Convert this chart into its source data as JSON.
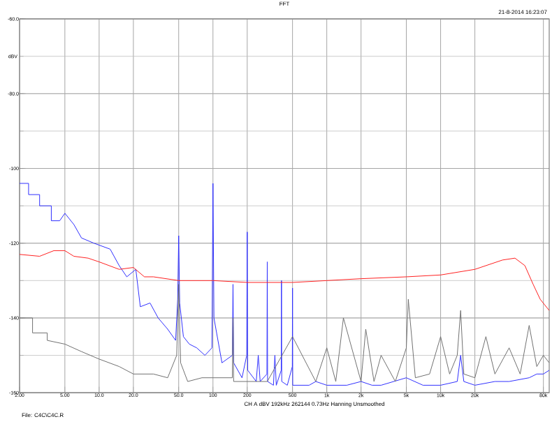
{
  "chart_data": {
    "type": "line",
    "title": "FFT",
    "ylabel": "dBV",
    "annotations": [
      "21-8-2014 16:23:07",
      "CH A  dBV  192kHz  262144  0.73Hz  Hanning  Unsmoothed",
      "File: C4C\\C4C.R"
    ],
    "log": "x",
    "grid": true,
    "marker": "none",
    "line_style": "solid",
    "xlim": [
      2,
      90000
    ],
    "ylim": [
      -160,
      -60
    ],
    "xticks": [
      {
        "value": 2,
        "label": "2.00"
      },
      {
        "value": 5,
        "label": "5.00"
      },
      {
        "value": 10,
        "label": "10.0"
      },
      {
        "value": 20,
        "label": "20.0"
      },
      {
        "value": 50,
        "label": "50.0"
      },
      100,
      200,
      500,
      {
        "value": 1000,
        "label": "1k"
      },
      {
        "value": 2000,
        "label": "2k"
      },
      {
        "value": 5000,
        "label": "5k"
      },
      {
        "value": 10000,
        "label": "10k"
      },
      {
        "value": 20000,
        "label": "20k"
      },
      {
        "value": 80000,
        "label": "80k"
      }
    ],
    "yticks": [
      {
        "value": -60,
        "label": "-60.0"
      },
      {
        "value": -80,
        "label": "-80.0"
      },
      -100,
      -120,
      -140,
      -160
    ],
    "series": [
      {
        "color": "#3030ff",
        "x": [
          2,
          2.4,
          2.4,
          3,
          3,
          3.8,
          3.8,
          4.5,
          5,
          6,
          7,
          9,
          12.5,
          15,
          17.5,
          21,
          23,
          28,
          33,
          40,
          47,
          49,
          50,
          51,
          55,
          62,
          72,
          85,
          98,
          100,
          102,
          120,
          148,
          150,
          152,
          180,
          198,
          200,
          202,
          240,
          250,
          260,
          298,
          300,
          302,
          340,
          350,
          360,
          398,
          400,
          402,
          450,
          498,
          500,
          502,
          600,
          700,
          800,
          1000,
          1500,
          2000,
          2500,
          3000,
          5000,
          7000,
          10000,
          14000,
          15000,
          16000,
          20000,
          30000,
          40000,
          60000,
          70000,
          80000,
          90000
        ],
        "values": [
          -104,
          -104,
          -107,
          -107,
          -110,
          -110,
          -114,
          -114,
          -112,
          -115,
          -118.6,
          -120,
          -121.6,
          -126,
          -129,
          -127,
          -137,
          -136,
          -140,
          -143,
          -146,
          -135,
          -118,
          -136,
          -145,
          -147,
          -148,
          -150,
          -148,
          -104,
          -140,
          -152,
          -150,
          -131,
          -152,
          -156,
          -150,
          -117,
          -154,
          -157,
          -150,
          -157,
          -155,
          -125,
          -157,
          -158,
          -150,
          -158,
          -154,
          -130,
          -157,
          -158,
          -153,
          -132,
          -158,
          -158,
          -158,
          -157,
          -158,
          -158,
          -157,
          -158,
          -158,
          -156,
          -158,
          -158,
          -157,
          -150,
          -157,
          -158,
          -157,
          -157,
          -156,
          -155,
          -155,
          -154
        ]
      },
      {
        "color": "#ff2020",
        "x": [
          2,
          3,
          4,
          5,
          6,
          8,
          10,
          15,
          20,
          25,
          30,
          50,
          100,
          200,
          500,
          1000,
          2000,
          5000,
          10000,
          20000,
          35000,
          45000,
          55000,
          65000,
          75000,
          90000
        ],
        "values": [
          -123,
          -123.5,
          -122,
          -122,
          -123.5,
          -124,
          -125,
          -127,
          -126.5,
          -129,
          -129,
          -130,
          -130,
          -130.5,
          -130.5,
          -130,
          -129.5,
          -129,
          -128.5,
          -127,
          -124.5,
          -124,
          -126,
          -131,
          -135,
          -138
        ]
      },
      {
        "color": "#707070",
        "x": [
          2,
          2.6,
          2.6,
          3.5,
          3.5,
          5,
          7,
          10,
          15,
          20,
          30,
          40,
          48,
          50,
          52,
          60,
          80,
          100,
          148,
          150,
          152,
          300,
          500,
          800,
          1000,
          1200,
          1400,
          2000,
          2200,
          2600,
          3000,
          4000,
          5000,
          5200,
          6000,
          8000,
          10000,
          12000,
          14000,
          15000,
          16000,
          20000,
          25000,
          30000,
          40000,
          50000,
          60000,
          70000,
          80000,
          90000
        ],
        "values": [
          -140,
          -140,
          -144,
          -144,
          -146,
          -147,
          -149,
          -151,
          -153,
          -155,
          -155,
          -156,
          -150,
          -131,
          -152,
          -157,
          -156,
          -156,
          -156,
          -140,
          -157,
          -157,
          -145,
          -157,
          -148,
          -157,
          -140,
          -157,
          -143,
          -157,
          -150,
          -157,
          -148,
          -135,
          -156,
          -155,
          -145,
          -155,
          -150,
          -138,
          -155,
          -156,
          -145,
          -155,
          -148,
          -155,
          -142,
          -153,
          -150,
          -152
        ]
      }
    ]
  }
}
